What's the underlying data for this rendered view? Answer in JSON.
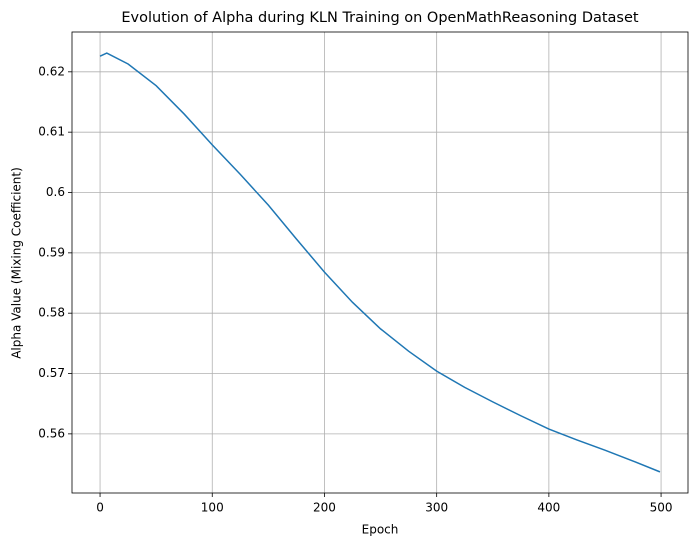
{
  "chart_data": {
    "type": "line",
    "title": "Evolution of Alpha during KLN Training on OpenMathReasoning Dataset",
    "xlabel": "Epoch",
    "ylabel": "Alpha Value (Mixing Coefficient)",
    "x": [
      0,
      6,
      25,
      50,
      75,
      100,
      125,
      150,
      175,
      200,
      225,
      250,
      275,
      300,
      325,
      350,
      375,
      400,
      425,
      450,
      475,
      499
    ],
    "series": [
      {
        "name": "Alpha",
        "color": "#1f77b4",
        "values": [
          0.6226,
          0.6231,
          0.6213,
          0.6177,
          0.613,
          0.6079,
          0.603,
          0.5979,
          0.5923,
          0.5868,
          0.5818,
          0.5774,
          0.5737,
          0.5704,
          0.5677,
          0.5653,
          0.563,
          0.5608,
          0.559,
          0.5573,
          0.5555,
          0.5537
        ]
      }
    ],
    "xlim": [
      -25,
      524
    ],
    "ylim": [
      0.5502,
      0.6266
    ],
    "xticks": [
      0,
      100,
      200,
      300,
      400,
      500
    ],
    "yticks": [
      0.56,
      0.57,
      0.58,
      0.59,
      0.6,
      0.61,
      0.62
    ],
    "grid": true
  }
}
